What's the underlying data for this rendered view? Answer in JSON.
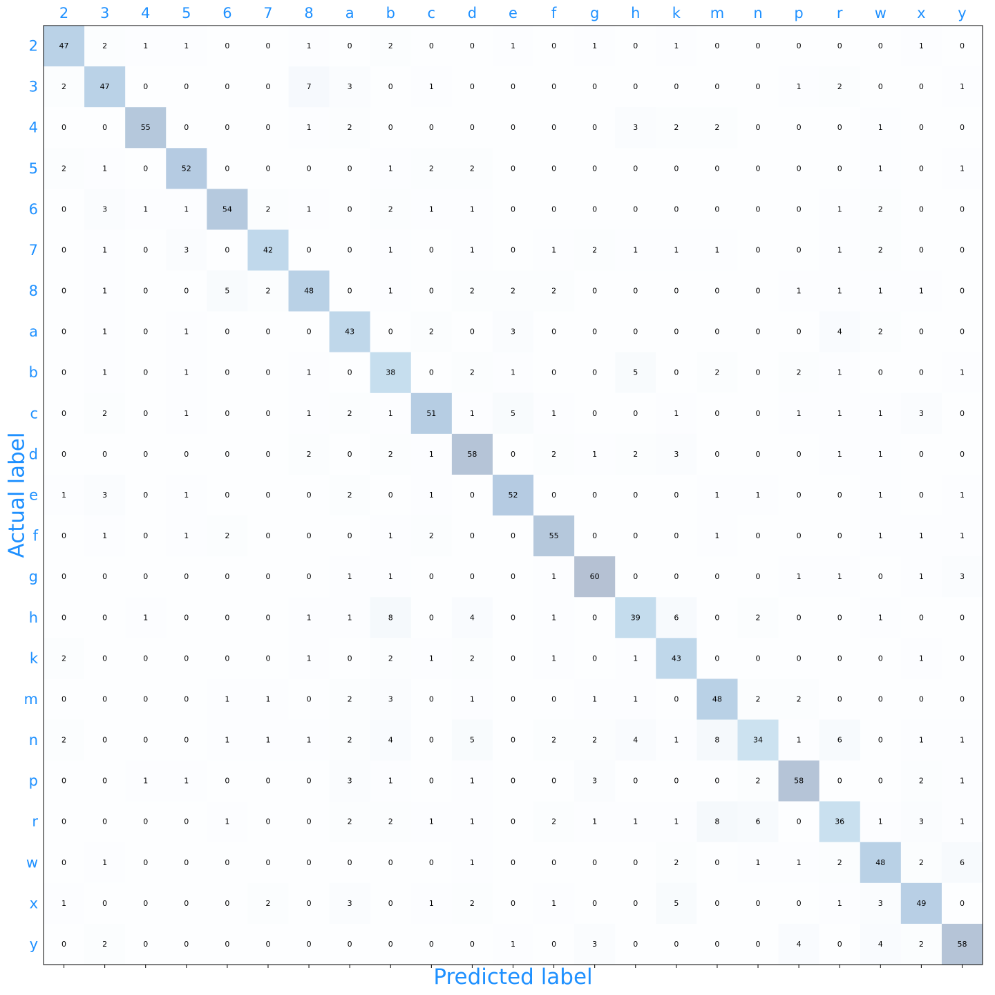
{
  "chart_data": {
    "type": "heatmap",
    "title": "",
    "xlabel": "Predicted label",
    "ylabel": "Actual label",
    "x_tick_position": "top",
    "colormap": "Blues",
    "label_color": "#1e90ff",
    "categories": [
      "2",
      "3",
      "4",
      "5",
      "6",
      "7",
      "8",
      "a",
      "b",
      "c",
      "d",
      "e",
      "f",
      "g",
      "h",
      "k",
      "m",
      "n",
      "p",
      "r",
      "w",
      "x",
      "y"
    ],
    "matrix": [
      [
        47,
        2,
        1,
        1,
        0,
        0,
        1,
        0,
        2,
        0,
        0,
        1,
        0,
        1,
        0,
        1,
        0,
        0,
        0,
        0,
        0,
        1,
        0
      ],
      [
        2,
        47,
        0,
        0,
        0,
        0,
        7,
        3,
        0,
        1,
        0,
        0,
        0,
        0,
        0,
        0,
        0,
        0,
        1,
        2,
        0,
        0,
        1
      ],
      [
        0,
        0,
        55,
        0,
        0,
        0,
        1,
        2,
        0,
        0,
        0,
        0,
        0,
        0,
        3,
        2,
        2,
        0,
        0,
        0,
        1,
        0,
        0
      ],
      [
        2,
        1,
        0,
        52,
        0,
        0,
        0,
        0,
        1,
        2,
        2,
        0,
        0,
        0,
        0,
        0,
        0,
        0,
        0,
        0,
        1,
        0,
        1
      ],
      [
        0,
        3,
        1,
        1,
        54,
        2,
        1,
        0,
        2,
        1,
        1,
        0,
        0,
        0,
        0,
        0,
        0,
        0,
        0,
        1,
        2,
        0,
        0
      ],
      [
        0,
        1,
        0,
        3,
        0,
        42,
        0,
        0,
        1,
        0,
        1,
        0,
        1,
        2,
        1,
        1,
        1,
        0,
        0,
        1,
        2,
        0,
        0
      ],
      [
        0,
        1,
        0,
        0,
        5,
        2,
        48,
        0,
        1,
        0,
        2,
        2,
        2,
        0,
        0,
        0,
        0,
        0,
        1,
        1,
        1,
        1,
        0
      ],
      [
        0,
        1,
        0,
        1,
        0,
        0,
        0,
        43,
        0,
        2,
        0,
        3,
        0,
        0,
        0,
        0,
        0,
        0,
        0,
        4,
        2,
        0,
        0
      ],
      [
        0,
        1,
        0,
        1,
        0,
        0,
        1,
        0,
        38,
        0,
        2,
        1,
        0,
        0,
        5,
        0,
        2,
        0,
        2,
        1,
        0,
        0,
        1
      ],
      [
        0,
        2,
        0,
        1,
        0,
        0,
        1,
        2,
        1,
        51,
        1,
        5,
        1,
        0,
        0,
        1,
        0,
        0,
        1,
        1,
        1,
        3,
        0
      ],
      [
        0,
        0,
        0,
        0,
        0,
        0,
        2,
        0,
        2,
        1,
        58,
        0,
        2,
        1,
        2,
        3,
        0,
        0,
        0,
        1,
        1,
        0,
        0
      ],
      [
        1,
        3,
        0,
        1,
        0,
        0,
        0,
        2,
        0,
        1,
        0,
        52,
        0,
        0,
        0,
        0,
        1,
        1,
        0,
        0,
        1,
        0,
        1
      ],
      [
        0,
        1,
        0,
        1,
        2,
        0,
        0,
        0,
        1,
        2,
        0,
        0,
        55,
        0,
        0,
        0,
        1,
        0,
        0,
        0,
        1,
        1,
        1
      ],
      [
        0,
        0,
        0,
        0,
        0,
        0,
        0,
        1,
        1,
        0,
        0,
        0,
        1,
        60,
        0,
        0,
        0,
        0,
        1,
        1,
        0,
        1,
        3
      ],
      [
        0,
        0,
        1,
        0,
        0,
        0,
        1,
        1,
        8,
        0,
        4,
        0,
        1,
        0,
        39,
        6,
        0,
        2,
        0,
        0,
        1,
        0,
        0
      ],
      [
        2,
        0,
        0,
        0,
        0,
        0,
        1,
        0,
        2,
        1,
        2,
        0,
        1,
        0,
        1,
        43,
        0,
        0,
        0,
        0,
        0,
        1,
        0
      ],
      [
        0,
        0,
        0,
        0,
        1,
        1,
        0,
        2,
        3,
        0,
        1,
        0,
        0,
        1,
        1,
        0,
        48,
        2,
        2,
        0,
        0,
        0,
        0
      ],
      [
        2,
        0,
        0,
        0,
        1,
        1,
        1,
        2,
        4,
        0,
        5,
        0,
        2,
        2,
        4,
        1,
        8,
        34,
        1,
        6,
        0,
        1,
        1
      ],
      [
        0,
        0,
        1,
        1,
        0,
        0,
        0,
        3,
        1,
        0,
        1,
        0,
        0,
        3,
        0,
        0,
        0,
        2,
        58,
        0,
        0,
        2,
        1
      ],
      [
        0,
        0,
        0,
        0,
        1,
        0,
        0,
        2,
        2,
        1,
        1,
        0,
        2,
        1,
        1,
        1,
        8,
        6,
        0,
        36,
        1,
        3,
        1
      ],
      [
        0,
        1,
        0,
        0,
        0,
        0,
        0,
        0,
        0,
        0,
        1,
        0,
        0,
        0,
        0,
        2,
        0,
        1,
        1,
        2,
        48,
        2,
        6
      ],
      [
        1,
        0,
        0,
        0,
        0,
        2,
        0,
        3,
        0,
        1,
        2,
        0,
        1,
        0,
        0,
        5,
        0,
        0,
        0,
        1,
        3,
        49,
        0
      ],
      [
        0,
        2,
        0,
        0,
        0,
        0,
        0,
        0,
        0,
        0,
        0,
        1,
        0,
        3,
        0,
        0,
        0,
        0,
        4,
        0,
        4,
        2,
        58
      ]
    ]
  }
}
